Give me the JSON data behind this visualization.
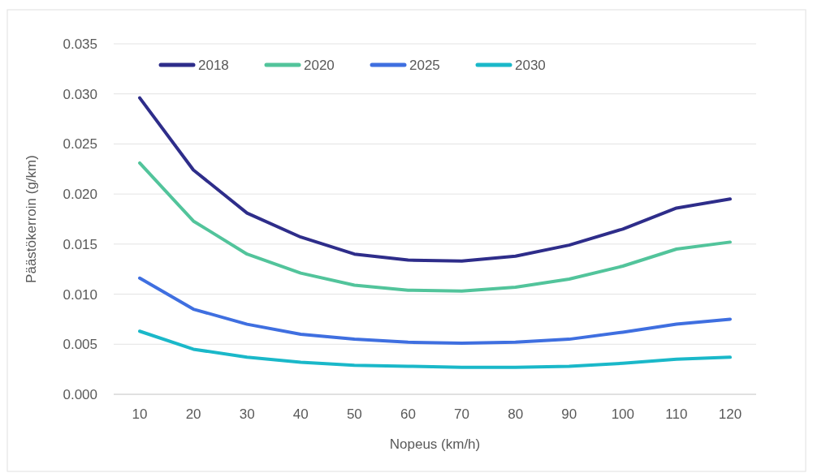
{
  "chart_data": {
    "type": "line",
    "xlabel": "Nopeus (km/h)",
    "ylabel": "Päästökerroin (g/km)",
    "categories": [
      "10",
      "20",
      "30",
      "40",
      "50",
      "60",
      "70",
      "80",
      "90",
      "100",
      "110",
      "120"
    ],
    "series": [
      {
        "name": "2018",
        "color": "#2e2d8a",
        "values": [
          0.0296,
          0.0224,
          0.0181,
          0.0157,
          0.014,
          0.0134,
          0.0133,
          0.0138,
          0.0149,
          0.0165,
          0.0186,
          0.0195
        ]
      },
      {
        "name": "2020",
        "color": "#52c49b",
        "values": [
          0.0231,
          0.0173,
          0.014,
          0.0121,
          0.0109,
          0.0104,
          0.0103,
          0.0107,
          0.0115,
          0.0128,
          0.0145,
          0.0152
        ]
      },
      {
        "name": "2025",
        "color": "#3f6fe0",
        "values": [
          0.0116,
          0.0085,
          0.007,
          0.006,
          0.0055,
          0.0052,
          0.0051,
          0.0052,
          0.0055,
          0.0062,
          0.007,
          0.0075
        ]
      },
      {
        "name": "2030",
        "color": "#1ab8c9",
        "values": [
          0.0063,
          0.0045,
          0.0037,
          0.0032,
          0.0029,
          0.0028,
          0.0027,
          0.0027,
          0.0028,
          0.0031,
          0.0035,
          0.0037
        ]
      }
    ],
    "ylim": [
      0,
      0.035
    ],
    "yticks": [
      {
        "value": 0,
        "label": "0.000"
      },
      {
        "value": 0.005,
        "label": "0.005"
      },
      {
        "value": 0.01,
        "label": "0.010"
      },
      {
        "value": 0.015,
        "label": "0.015"
      },
      {
        "value": 0.02,
        "label": "0.020"
      },
      {
        "value": 0.025,
        "label": "0.025"
      },
      {
        "value": 0.03,
        "label": "0.030"
      },
      {
        "value": 0.035,
        "label": "0.035"
      }
    ],
    "grid": "y",
    "legend": "top left",
    "marker": "none",
    "line_style": "solid"
  }
}
